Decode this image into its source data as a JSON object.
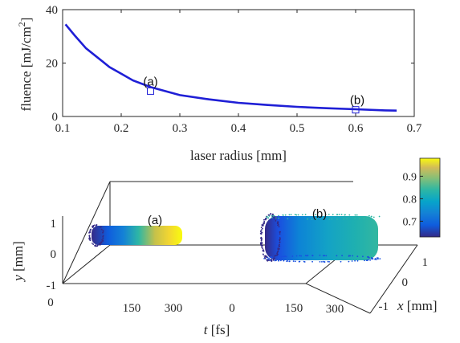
{
  "chart_data": [
    {
      "type": "line",
      "xlabel": "laser radius [mm]",
      "ylabel": "fluence [mJ/cm",
      "ylabel_sup": "2",
      "ylabel_end": "]",
      "xlim": [
        0.1,
        0.7
      ],
      "ylim": [
        0,
        40
      ],
      "xticks": [
        "0.1",
        "0.2",
        "0.3",
        "0.4",
        "0.5",
        "0.6",
        "0.7"
      ],
      "yticks": [
        "0",
        "20",
        "40"
      ],
      "line_color": "#1f1fd6",
      "x": [
        0.105,
        0.12,
        0.14,
        0.16,
        0.18,
        0.2,
        0.22,
        0.25,
        0.28,
        0.3,
        0.35,
        0.4,
        0.45,
        0.5,
        0.55,
        0.6,
        0.65,
        0.67
      ],
      "y": [
        34.5,
        30.5,
        25.5,
        22.0,
        18.5,
        16.0,
        13.5,
        11.0,
        9.2,
        8.0,
        6.4,
        5.1,
        4.3,
        3.6,
        3.1,
        2.7,
        2.3,
        2.2
      ],
      "annotations": [
        {
          "label": "(a)",
          "x": 0.25,
          "y": 9.5
        },
        {
          "label": "(b)",
          "x": 0.6,
          "y": 2.5
        }
      ]
    },
    {
      "type": "scatter",
      "projection": "3d",
      "xlabel": "t",
      "xlabel_unit": "[fs]",
      "ylabel": "y",
      "ylabel_unit": "[mm]",
      "zlabel": "x",
      "zlabel_unit": "[mm]",
      "t_ticks": [
        "0",
        "150",
        "300",
        "0",
        "150",
        "300"
      ],
      "y_ticks": [
        "-1",
        "0",
        "1"
      ],
      "x_ticks": [
        "-1",
        "0",
        "1"
      ],
      "colorbar": {
        "ticks": [
          "0.7",
          "0.8",
          "0.9"
        ],
        "range": [
          0.63,
          0.98
        ],
        "colormap": "parula"
      },
      "clusters": [
        {
          "label": "(a)",
          "t_range": [
            0,
            300
          ],
          "y_range": [
            -0.25,
            0.25
          ],
          "color_range": [
            0.63,
            0.98
          ]
        },
        {
          "label": "(b)",
          "t_range": [
            0,
            300
          ],
          "y_range": [
            -0.6,
            0.6
          ],
          "color_range": [
            0.63,
            0.82
          ]
        }
      ]
    }
  ]
}
